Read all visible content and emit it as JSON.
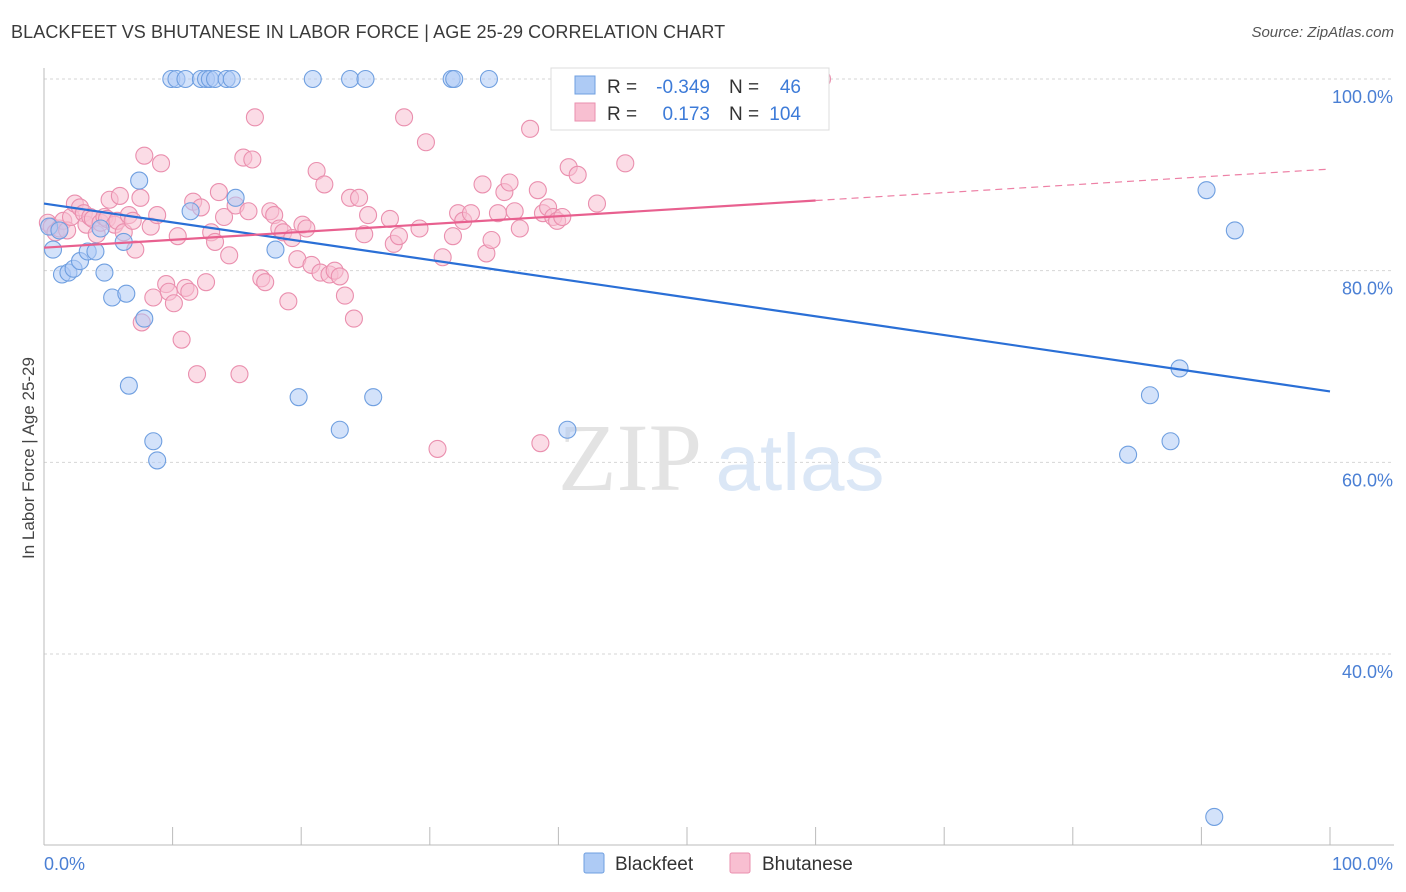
{
  "header": {
    "title": "BLACKFEET VS BHUTANESE IN LABOR FORCE | AGE 25-29 CORRELATION CHART",
    "source": "Source: ZipAtlas.com"
  },
  "watermark": {
    "zip": "ZIP",
    "atlas": "atlas"
  },
  "colors": {
    "blue_fill": "#aecbf5",
    "blue_stroke": "#6f9fe0",
    "blue_line": "#2a6fd6",
    "pink_fill": "#f8bfd1",
    "pink_stroke": "#ea8fae",
    "pink_line": "#e8608f",
    "axis_label": "#4a7fd4",
    "grid": "#d6d6d6"
  },
  "chart_data": {
    "type": "scatter",
    "title": "BLACKFEET VS BHUTANESE IN LABOR FORCE | AGE 25-29 CORRELATION CHART",
    "xlabel": "",
    "ylabel": "In Labor Force | Age 25-29",
    "xlim": [
      0,
      100
    ],
    "ylim": [
      20,
      102
    ],
    "x_tick_labels": [
      "0.0%",
      "100.0%"
    ],
    "y_ticks": [
      100,
      80,
      60,
      40
    ],
    "y_tick_labels": [
      "100.0%",
      "80.0%",
      "60.0%",
      "40.0%"
    ],
    "grid": true,
    "legend_position": "top-center",
    "stats": [
      {
        "series": "Blackfeet",
        "r_label": "R =",
        "r": "-0.349",
        "n_label": "N =",
        "n": "46"
      },
      {
        "series": "Bhutanese",
        "r_label": "R =",
        "r": "0.173",
        "n_label": "N =",
        "n": "104"
      }
    ],
    "series": [
      {
        "name": "Blackfeet",
        "color": "#aecbf5",
        "trend": {
          "x": [
            0,
            100
          ],
          "y": [
            87.0,
            67.4
          ],
          "dashed_from": null
        },
        "points": [
          [
            0.4,
            84.6
          ],
          [
            0.7,
            82.2
          ],
          [
            1.2,
            84.2
          ],
          [
            1.4,
            79.6
          ],
          [
            1.9,
            79.8
          ],
          [
            2.3,
            80.2
          ],
          [
            2.8,
            81.0
          ],
          [
            3.4,
            82.0
          ],
          [
            4.0,
            82.0
          ],
          [
            4.4,
            84.4
          ],
          [
            4.7,
            79.8
          ],
          [
            5.3,
            77.2
          ],
          [
            6.2,
            83.0
          ],
          [
            6.4,
            77.6
          ],
          [
            6.6,
            68.0
          ],
          [
            7.4,
            89.4
          ],
          [
            7.8,
            75.0
          ],
          [
            8.5,
            62.2
          ],
          [
            8.8,
            60.2
          ],
          [
            9.9,
            100.0
          ],
          [
            10.3,
            100.0
          ],
          [
            11.0,
            100.0
          ],
          [
            12.2,
            100.0
          ],
          [
            12.6,
            100.0
          ],
          [
            12.9,
            100.0
          ],
          [
            13.3,
            100.0
          ],
          [
            14.2,
            100.0
          ],
          [
            14.6,
            100.0
          ],
          [
            14.9,
            87.6
          ],
          [
            11.4,
            86.2
          ],
          [
            18.0,
            82.2
          ],
          [
            19.8,
            66.8
          ],
          [
            20.9,
            100.0
          ],
          [
            23.0,
            63.4
          ],
          [
            23.8,
            100.0
          ],
          [
            25.0,
            100.0
          ],
          [
            25.6,
            66.8
          ],
          [
            31.7,
            100.0
          ],
          [
            31.9,
            100.0
          ],
          [
            34.6,
            100.0
          ],
          [
            40.7,
            63.4
          ],
          [
            84.3,
            60.8
          ],
          [
            86.0,
            67.0
          ],
          [
            87.6,
            62.2
          ],
          [
            88.3,
            69.8
          ],
          [
            90.4,
            88.4
          ],
          [
            91.0,
            23.0
          ],
          [
            92.6,
            84.2
          ]
        ]
      },
      {
        "name": "Bhutanese",
        "color": "#f8bfd1",
        "trend": {
          "x": [
            0,
            100
          ],
          "y": [
            82.4,
            90.6
          ],
          "dashed_from": 60
        },
        "points": [
          [
            0.3,
            85.0
          ],
          [
            0.6,
            84.6
          ],
          [
            0.9,
            84.0
          ],
          [
            1.2,
            84.4
          ],
          [
            1.5,
            85.2
          ],
          [
            1.8,
            84.2
          ],
          [
            2.1,
            85.6
          ],
          [
            2.4,
            87.0
          ],
          [
            2.8,
            86.6
          ],
          [
            3.1,
            86.0
          ],
          [
            3.3,
            84.8
          ],
          [
            3.6,
            85.6
          ],
          [
            3.8,
            85.4
          ],
          [
            4.1,
            83.8
          ],
          [
            4.4,
            85.0
          ],
          [
            4.7,
            85.6
          ],
          [
            4.9,
            85.4
          ],
          [
            5.1,
            87.4
          ],
          [
            5.5,
            84.8
          ],
          [
            5.7,
            85.2
          ],
          [
            5.9,
            87.8
          ],
          [
            6.2,
            84.0
          ],
          [
            6.6,
            85.8
          ],
          [
            6.9,
            85.2
          ],
          [
            7.1,
            82.2
          ],
          [
            7.5,
            87.6
          ],
          [
            7.6,
            74.6
          ],
          [
            7.8,
            92.0
          ],
          [
            8.3,
            84.6
          ],
          [
            8.5,
            77.2
          ],
          [
            8.8,
            85.8
          ],
          [
            9.1,
            91.2
          ],
          [
            9.5,
            78.6
          ],
          [
            9.7,
            77.8
          ],
          [
            10.1,
            76.6
          ],
          [
            10.4,
            83.6
          ],
          [
            10.7,
            72.8
          ],
          [
            11.0,
            78.2
          ],
          [
            11.3,
            77.8
          ],
          [
            11.6,
            87.2
          ],
          [
            11.9,
            69.2
          ],
          [
            12.2,
            86.6
          ],
          [
            12.6,
            78.8
          ],
          [
            13.0,
            84.0
          ],
          [
            13.3,
            83.0
          ],
          [
            13.6,
            88.2
          ],
          [
            14.0,
            85.6
          ],
          [
            14.4,
            81.6
          ],
          [
            14.9,
            86.8
          ],
          [
            15.2,
            69.2
          ],
          [
            15.5,
            91.8
          ],
          [
            15.9,
            86.2
          ],
          [
            16.2,
            91.6
          ],
          [
            16.4,
            96.0
          ],
          [
            16.9,
            79.2
          ],
          [
            17.2,
            78.8
          ],
          [
            17.6,
            86.2
          ],
          [
            17.9,
            85.8
          ],
          [
            18.3,
            84.4
          ],
          [
            18.6,
            84.0
          ],
          [
            19.0,
            76.8
          ],
          [
            19.3,
            83.4
          ],
          [
            19.7,
            81.2
          ],
          [
            20.1,
            84.8
          ],
          [
            20.4,
            84.4
          ],
          [
            20.8,
            80.6
          ],
          [
            21.2,
            90.4
          ],
          [
            21.5,
            79.8
          ],
          [
            21.8,
            89.0
          ],
          [
            22.2,
            79.6
          ],
          [
            22.6,
            80.0
          ],
          [
            23.0,
            79.4
          ],
          [
            23.4,
            77.4
          ],
          [
            23.8,
            87.6
          ],
          [
            24.1,
            75.0
          ],
          [
            24.5,
            87.6
          ],
          [
            24.9,
            83.8
          ],
          [
            25.2,
            85.8
          ],
          [
            26.9,
            85.4
          ],
          [
            27.2,
            82.8
          ],
          [
            27.6,
            83.6
          ],
          [
            28.0,
            96.0
          ],
          [
            29.2,
            84.4
          ],
          [
            29.7,
            93.4
          ],
          [
            30.6,
            61.4
          ],
          [
            31.0,
            81.4
          ],
          [
            31.8,
            83.6
          ],
          [
            32.2,
            86.0
          ],
          [
            32.6,
            85.2
          ],
          [
            33.2,
            86.0
          ],
          [
            34.1,
            89.0
          ],
          [
            34.4,
            81.8
          ],
          [
            34.8,
            83.2
          ],
          [
            35.3,
            86.0
          ],
          [
            35.8,
            88.2
          ],
          [
            36.2,
            89.2
          ],
          [
            36.6,
            86.2
          ],
          [
            37.0,
            84.4
          ],
          [
            37.8,
            94.8
          ],
          [
            38.4,
            88.4
          ],
          [
            38.6,
            62.0
          ],
          [
            38.8,
            86.0
          ],
          [
            39.2,
            86.6
          ],
          [
            39.6,
            85.6
          ],
          [
            39.9,
            85.2
          ],
          [
            40.3,
            85.6
          ],
          [
            40.8,
            90.8
          ],
          [
            41.5,
            90.0
          ],
          [
            43.0,
            87.0
          ],
          [
            45.2,
            91.2
          ],
          [
            60.5,
            100.0
          ]
        ]
      }
    ]
  }
}
